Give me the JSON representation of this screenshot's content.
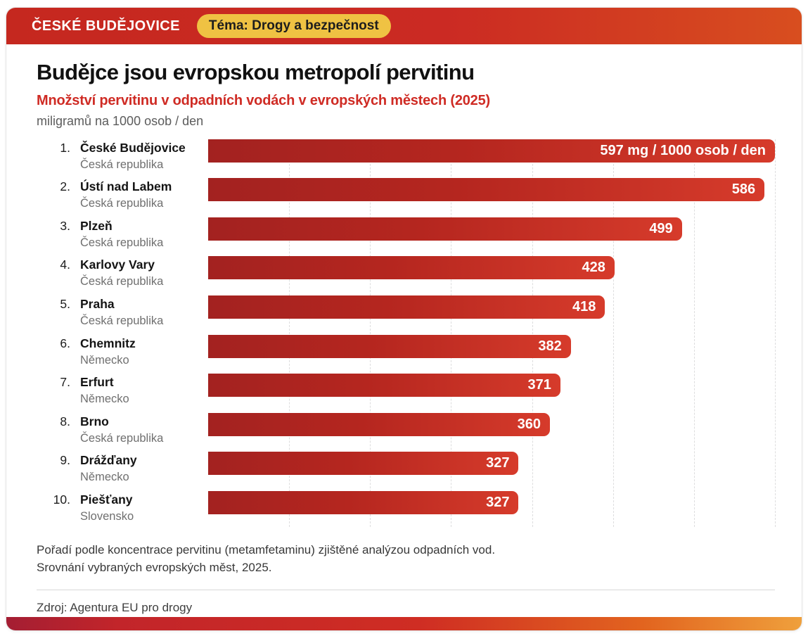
{
  "header": {
    "brand": "ČESKÉ BUDĚJOVICE",
    "badge": "Téma: Drogy a bezpečnost"
  },
  "title": "Budějce jsou evropskou metropolí pervitinu",
  "subtitle": "Množství pervitinu v odpadních vodách v evropských městech (2025)",
  "units": "miligramů na 1000 osob / den",
  "chart_data": {
    "type": "bar",
    "orientation": "horizontal",
    "title": "Množství pervitinu v odpadních vodách v evropských městech (2025)",
    "xlabel": "miligramů na 1000 osob / den",
    "max_value": 597,
    "xlim": [
      0,
      597
    ],
    "grid": "vertical dashed, 7 divisions",
    "value_labels_position": "inside bar, right-aligned",
    "categories": [
      "České Budějovice",
      "Ústí nad Labem",
      "Plzeň",
      "Karlovy Vary",
      "Praha",
      "Chemnitz",
      "Erfurt",
      "Brno",
      "Drážďany",
      "Piešťany"
    ],
    "values": [
      597,
      586,
      499,
      428,
      418,
      382,
      371,
      360,
      327,
      327
    ],
    "items": [
      {
        "rank": "1.",
        "city": "České Budějovice",
        "country": "Česká republika",
        "value": 597,
        "label": "597 mg / 1000 osob / den"
      },
      {
        "rank": "2.",
        "city": "Ústí nad Labem",
        "country": "Česká republika",
        "value": 586,
        "label": "586"
      },
      {
        "rank": "3.",
        "city": "Plzeň",
        "country": "Česká republika",
        "value": 499,
        "label": "499"
      },
      {
        "rank": "4.",
        "city": "Karlovy Vary",
        "country": "Česká republika",
        "value": 428,
        "label": "428"
      },
      {
        "rank": "5.",
        "city": "Praha",
        "country": "Česká republika",
        "value": 418,
        "label": "418"
      },
      {
        "rank": "6.",
        "city": "Chemnitz",
        "country": "Německo",
        "value": 382,
        "label": "382"
      },
      {
        "rank": "7.",
        "city": "Erfurt",
        "country": "Německo",
        "value": 371,
        "label": "371"
      },
      {
        "rank": "8.",
        "city": "Brno",
        "country": "Česká republika",
        "value": 360,
        "label": "360"
      },
      {
        "rank": "9.",
        "city": "Drážďany",
        "country": "Německo",
        "value": 327,
        "label": "327"
      },
      {
        "rank": "10.",
        "city": "Piešťany",
        "country": "Slovensko",
        "value": 327,
        "label": "327"
      }
    ]
  },
  "footnote": {
    "line1": "Pořadí podle koncentrace pervitinu (metamfetaminu) zjištěné analýzou odpadních vod.",
    "line2": "Srovnání vybraných evropských měst, 2025."
  },
  "source": "Zdroj: Agentura EU pro drogy",
  "colors": {
    "header_gradient": [
      "#c5281f",
      "#d84e1f"
    ],
    "badge_bg": "#efc243",
    "badge_text": "#1d1d1d",
    "accent_red": "#cf2b24",
    "bar_gradient": [
      "#a32220",
      "#d63b2b"
    ],
    "value_text": "#ffffff",
    "bottom_gradient": [
      "#a41e33",
      "#c2252a",
      "#cf2d23",
      "#e2641f",
      "#efa03c"
    ]
  }
}
